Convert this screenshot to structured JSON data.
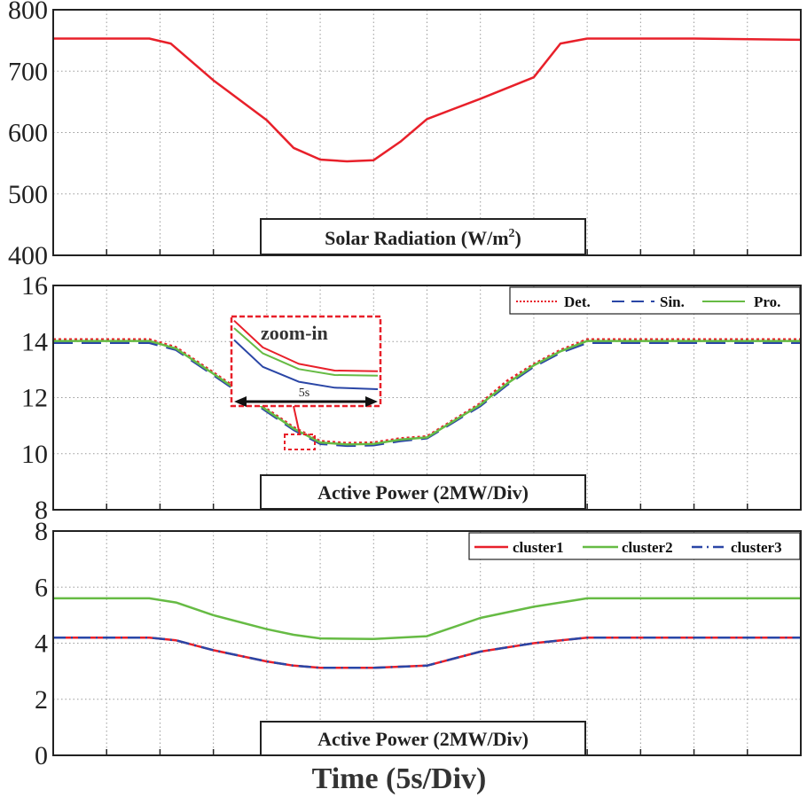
{
  "figure": {
    "xlabel": "Time (5s/Div)",
    "x_divisions": 14
  },
  "colors": {
    "red": "#e8202a",
    "blue": "#2a46a6",
    "green": "#66bb44",
    "grid": "#9a9a9a"
  },
  "chart_data": [
    {
      "type": "line",
      "title": "Solar Radiation (W/m2)",
      "label_main": "Solar Radiation (W/m",
      "label_sup": "2",
      "label_tail": ")",
      "ylim": [
        400,
        800
      ],
      "yticks": [
        400,
        500,
        600,
        700,
        800
      ],
      "ytick_labels": [
        "400",
        "500",
        "600",
        "700",
        "800"
      ],
      "grid": true,
      "series": [
        {
          "name": "Solar Radiation",
          "color": "#e8202a",
          "style": "solid",
          "x": [
            0,
            1.8,
            2.2,
            3,
            4,
            4.5,
            5,
            5.5,
            6,
            6.5,
            7,
            8,
            9,
            9.5,
            10,
            12,
            14
          ],
          "y": [
            753,
            753,
            745,
            685,
            620,
            575,
            556,
            553,
            555,
            585,
            622,
            655,
            690,
            745,
            753,
            753,
            751
          ]
        }
      ]
    },
    {
      "type": "line",
      "title": "Active Power (2MW/Div)",
      "ylim": [
        8,
        16
      ],
      "yticks": [
        8,
        10,
        12,
        14,
        16
      ],
      "ytick_labels": [
        "8",
        "10",
        "12",
        "14",
        "16"
      ],
      "grid": true,
      "legend": {
        "location": "top-right",
        "entries": [
          "Det.",
          "Sin.",
          "Pro."
        ]
      },
      "series": [
        {
          "name": "Det.",
          "color": "#e8202a",
          "style": "dotted",
          "x": [
            0,
            1.8,
            2.3,
            3,
            4,
            4.5,
            5,
            5.5,
            6,
            6.5,
            7,
            8,
            8.5,
            9,
            9.5,
            10,
            12,
            14
          ],
          "y": [
            14.08,
            14.08,
            13.8,
            12.9,
            11.6,
            10.95,
            10.45,
            10.38,
            10.4,
            10.55,
            10.62,
            11.8,
            12.6,
            13.2,
            13.7,
            14.08,
            14.08,
            14.08
          ]
        },
        {
          "name": "Sin.",
          "color": "#2a46a6",
          "style": "dashed",
          "x": [
            0,
            1.8,
            2.3,
            3,
            4,
            4.5,
            5,
            5.5,
            6,
            6.5,
            7,
            8,
            8.5,
            9,
            9.5,
            10,
            12,
            14
          ],
          "y": [
            13.95,
            13.95,
            13.7,
            12.8,
            11.5,
            10.85,
            10.35,
            10.28,
            10.3,
            10.45,
            10.55,
            11.7,
            12.45,
            13.1,
            13.6,
            13.95,
            13.95,
            13.95
          ]
        },
        {
          "name": "Pro.",
          "color": "#66bb44",
          "style": "solid",
          "x": [
            0,
            1.8,
            2.3,
            3,
            4,
            4.5,
            5,
            5.5,
            6,
            6.5,
            7,
            8,
            8.5,
            9,
            9.5,
            10,
            12,
            14
          ],
          "y": [
            14.02,
            14.02,
            13.75,
            12.85,
            11.55,
            10.9,
            10.4,
            10.33,
            10.35,
            10.5,
            10.58,
            11.75,
            12.5,
            13.15,
            13.65,
            14.02,
            14.02,
            14.02
          ]
        }
      ],
      "inset": {
        "title": "zoom-in",
        "span_label": "5s",
        "series": [
          {
            "name": "Det.",
            "color": "#e8202a",
            "x": [
              0,
              0.2,
              0.45,
              0.7,
              1
            ],
            "y": [
              0.98,
              0.62,
              0.4,
              0.31,
              0.3
            ]
          },
          {
            "name": "Pro.",
            "color": "#66bb44",
            "x": [
              0,
              0.2,
              0.45,
              0.7,
              1
            ],
            "y": [
              0.88,
              0.54,
              0.33,
              0.25,
              0.24
            ]
          },
          {
            "name": "Sin.",
            "color": "#2a46a6",
            "x": [
              0,
              0.2,
              0.45,
              0.7,
              1
            ],
            "y": [
              0.72,
              0.36,
              0.16,
              0.08,
              0.06
            ]
          }
        ]
      }
    },
    {
      "type": "line",
      "title": "Active Power (2MW/Div)",
      "ylim": [
        0,
        8
      ],
      "yticks": [
        0,
        2,
        4,
        6,
        8
      ],
      "ytick_labels": [
        "0",
        "2",
        "4",
        "6",
        "8"
      ],
      "grid": true,
      "legend": {
        "location": "top-right",
        "entries": [
          "cluster1",
          "cluster2",
          "cluster3"
        ]
      },
      "series": [
        {
          "name": "cluster1",
          "color": "#e8202a",
          "style": "solid",
          "x": [
            0,
            1.8,
            2.3,
            3,
            4,
            4.5,
            5,
            6,
            7,
            8,
            9,
            10,
            12,
            14
          ],
          "y": [
            4.2,
            4.2,
            4.1,
            3.75,
            3.35,
            3.2,
            3.12,
            3.12,
            3.2,
            3.7,
            4.0,
            4.2,
            4.2,
            4.2
          ]
        },
        {
          "name": "cluster2",
          "color": "#66bb44",
          "style": "solid",
          "x": [
            0,
            1.8,
            2.3,
            3,
            4,
            4.5,
            5,
            6,
            7,
            8,
            9,
            10,
            12,
            14
          ],
          "y": [
            5.6,
            5.6,
            5.45,
            5.0,
            4.5,
            4.3,
            4.17,
            4.15,
            4.25,
            4.9,
            5.3,
            5.6,
            5.6,
            5.6
          ]
        },
        {
          "name": "cluster3",
          "color": "#2a46a6",
          "style": "dashdot",
          "x": [
            0,
            1.8,
            2.3,
            3,
            4,
            4.5,
            5,
            6,
            7,
            8,
            9,
            10,
            12,
            14
          ],
          "y": [
            4.2,
            4.2,
            4.1,
            3.75,
            3.35,
            3.2,
            3.12,
            3.12,
            3.2,
            3.7,
            4.0,
            4.2,
            4.2,
            4.2
          ]
        }
      ]
    }
  ]
}
